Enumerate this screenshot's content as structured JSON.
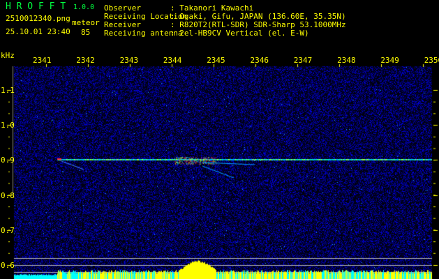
{
  "header": {
    "app_title": "H R O F F T",
    "version": "1.0.0",
    "filename": "2510012340.png",
    "datetime": "25.10.01 23:40",
    "mode_label": "meteor",
    "count": "85",
    "info": [
      {
        "label": "Observer",
        "value": ": Takanori Kawachi"
      },
      {
        "label": "Receiving Location",
        "value": ": Ogaki, Gifu, JAPAN (136.60E, 35.35N)"
      },
      {
        "label": "Receiver",
        "value": ": R820T2(RTL-SDR) SDR-Sharp 53.1000MHz"
      },
      {
        "label": "Receiving antenna",
        "value": ": 2el-HB9CV Vertical (el. E-W)"
      }
    ]
  },
  "spectrogram": {
    "y_unit": "kHz",
    "x_ticks": [
      "2341",
      "2342",
      "2343",
      "2344",
      "2345",
      "2346",
      "2347",
      "2348",
      "2349",
      "2350"
    ],
    "y_ticks": [
      "1.1",
      "1.0",
      "0.9",
      "0.8",
      "0.7",
      "0.6"
    ],
    "carrier_khz": 0.9,
    "colors": {
      "text": "#ffff00",
      "title": "#00ff40",
      "noise": "#1020c0",
      "histogram_high": "#ffff00",
      "histogram_low": "#00ffff"
    }
  }
}
